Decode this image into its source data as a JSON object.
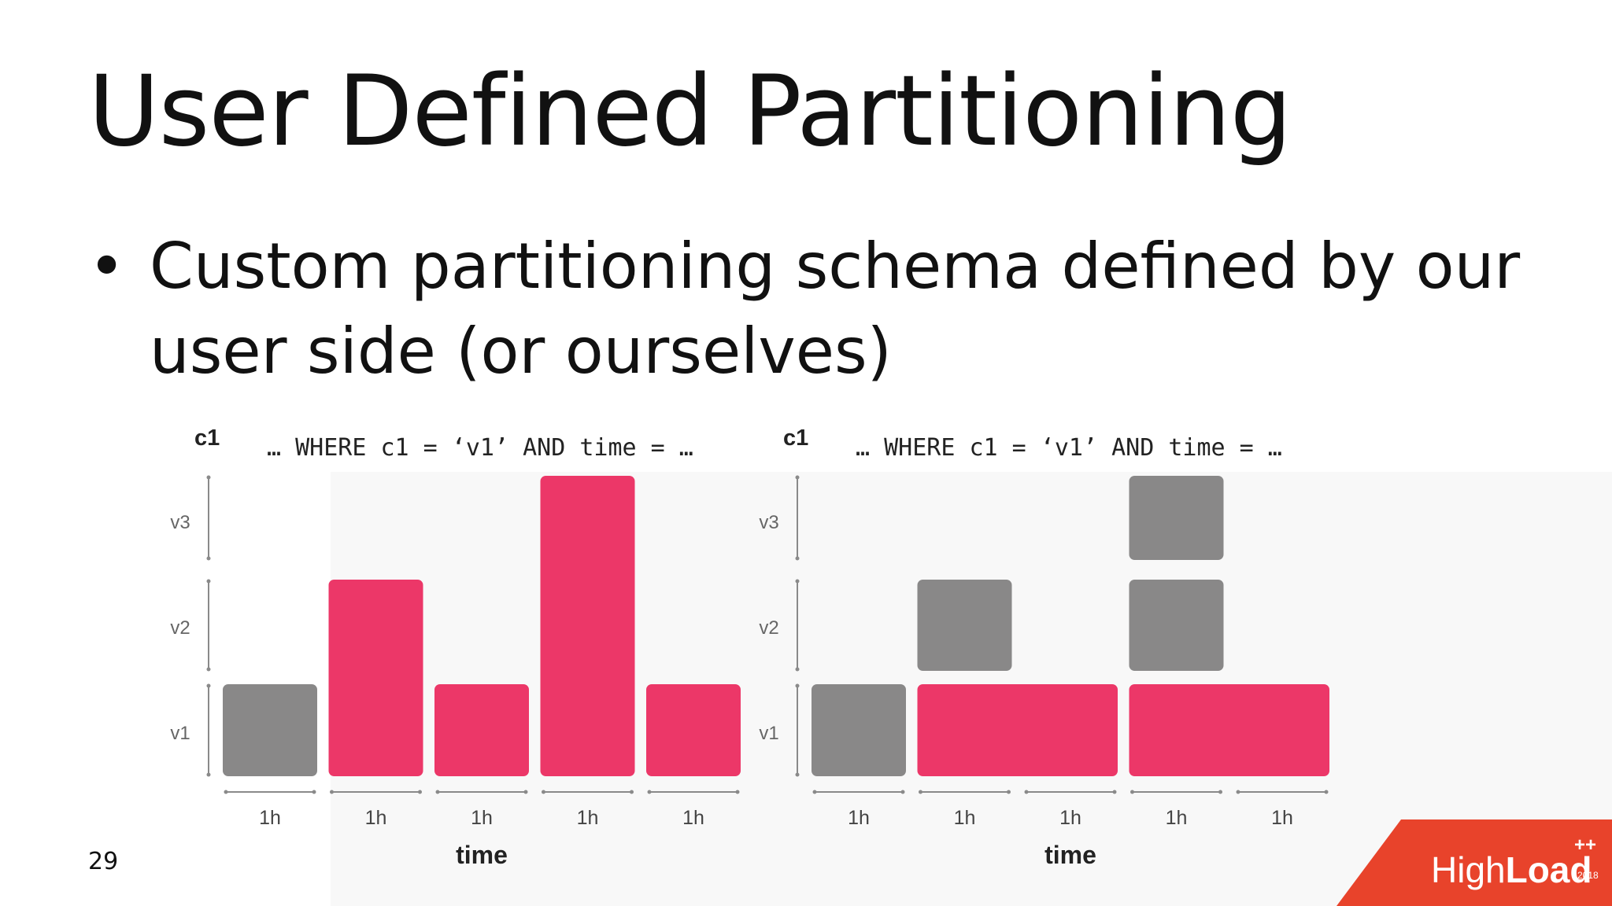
{
  "slide": {
    "title": "User Defined Partitioning",
    "bullet": "Custom partitioning schema defined by our user side (or ourselves)",
    "page_number": "29"
  },
  "diagrams": [
    {
      "axis_label": "c1",
      "query": "… WHERE c1 = ‘v1’ AND time = …",
      "rows": [
        "v1",
        "v2",
        "v3"
      ],
      "time_labels": [
        "1h",
        "1h",
        "1h",
        "1h",
        "1h"
      ],
      "x_label": "time",
      "blocks": [
        {
          "col": 0,
          "span": 1,
          "row_from": 0,
          "row_to": 0,
          "highlight": false
        },
        {
          "col": 1,
          "span": 1,
          "row_from": 0,
          "row_to": 1,
          "highlight": true
        },
        {
          "col": 2,
          "span": 1,
          "row_from": 0,
          "row_to": 0,
          "highlight": true
        },
        {
          "col": 3,
          "span": 1,
          "row_from": 0,
          "row_to": 2,
          "highlight": true
        },
        {
          "col": 4,
          "span": 1,
          "row_from": 0,
          "row_to": 0,
          "highlight": true
        }
      ]
    },
    {
      "axis_label": "c1",
      "query": "… WHERE c1 = ‘v1’ AND time = …",
      "rows": [
        "v1",
        "v2",
        "v3"
      ],
      "time_labels": [
        "1h",
        "1h",
        "1h",
        "1h",
        "1h"
      ],
      "x_label": "time",
      "blocks": [
        {
          "col": 0,
          "span": 1,
          "row_from": 0,
          "row_to": 0,
          "highlight": false
        },
        {
          "col": 1,
          "span": 1,
          "row_from": 1,
          "row_to": 1,
          "highlight": false
        },
        {
          "col": 1,
          "span": 2,
          "row_from": 0,
          "row_to": 0,
          "highlight": true
        },
        {
          "col": 3,
          "span": 1,
          "row_from": 2,
          "row_to": 2,
          "highlight": false
        },
        {
          "col": 3,
          "span": 1,
          "row_from": 1,
          "row_to": 1,
          "highlight": false
        },
        {
          "col": 3,
          "span": 2,
          "row_from": 0,
          "row_to": 0,
          "highlight": true
        }
      ]
    }
  ],
  "logo": {
    "text_light": "High",
    "text_bold": "Load",
    "superscript": "++",
    "year": "2018"
  },
  "colors": {
    "highlight": "#ec3768",
    "block": "#898888",
    "axis": "#8a8a8a",
    "logo": "#e8432b"
  }
}
